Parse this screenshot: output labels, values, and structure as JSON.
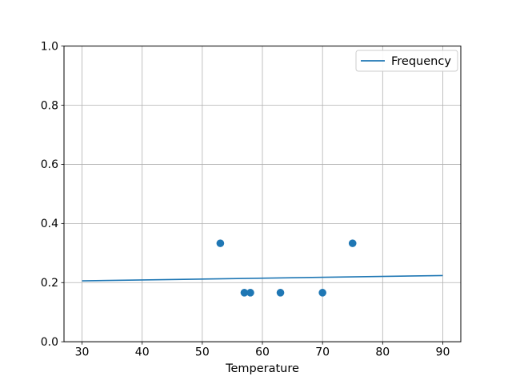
{
  "chart_data": {
    "type": "scatter",
    "title": "",
    "xlabel": "Temperature",
    "ylabel": "",
    "xlim": [
      27,
      93
    ],
    "ylim": [
      0.0,
      1.0
    ],
    "x_ticks": [
      30,
      40,
      50,
      60,
      70,
      80,
      90
    ],
    "x_tick_labels": [
      "30",
      "40",
      "50",
      "60",
      "70",
      "80",
      "90"
    ],
    "y_ticks": [
      0.0,
      0.2,
      0.4,
      0.6,
      0.8,
      1.0
    ],
    "y_tick_labels": [
      "0.0",
      "0.2",
      "0.4",
      "0.6",
      "0.8",
      "1.0"
    ],
    "grid": true,
    "legend": {
      "position": "upper right",
      "entries": [
        {
          "label": "Frequency",
          "type": "line",
          "color": "#1f77b4"
        }
      ]
    },
    "series": [
      {
        "name": "frequency-fit-line",
        "type": "line",
        "color": "#1f77b4",
        "points": [
          [
            30,
            0.206
          ],
          [
            90,
            0.224
          ]
        ]
      },
      {
        "name": "frequency-scatter",
        "type": "scatter",
        "color": "#1f77b4",
        "points": [
          [
            53,
            0.333
          ],
          [
            57,
            0.166
          ],
          [
            58,
            0.166
          ],
          [
            63,
            0.166
          ],
          [
            70,
            0.166
          ],
          [
            75,
            0.333
          ]
        ]
      }
    ]
  },
  "colors": {
    "series": "#1f77b4",
    "grid": "#b0b0b0",
    "spine": "#000000",
    "tick": "#000000",
    "legend_edge": "#cccccc",
    "legend_face": "#ffffff",
    "background": "#ffffff"
  }
}
